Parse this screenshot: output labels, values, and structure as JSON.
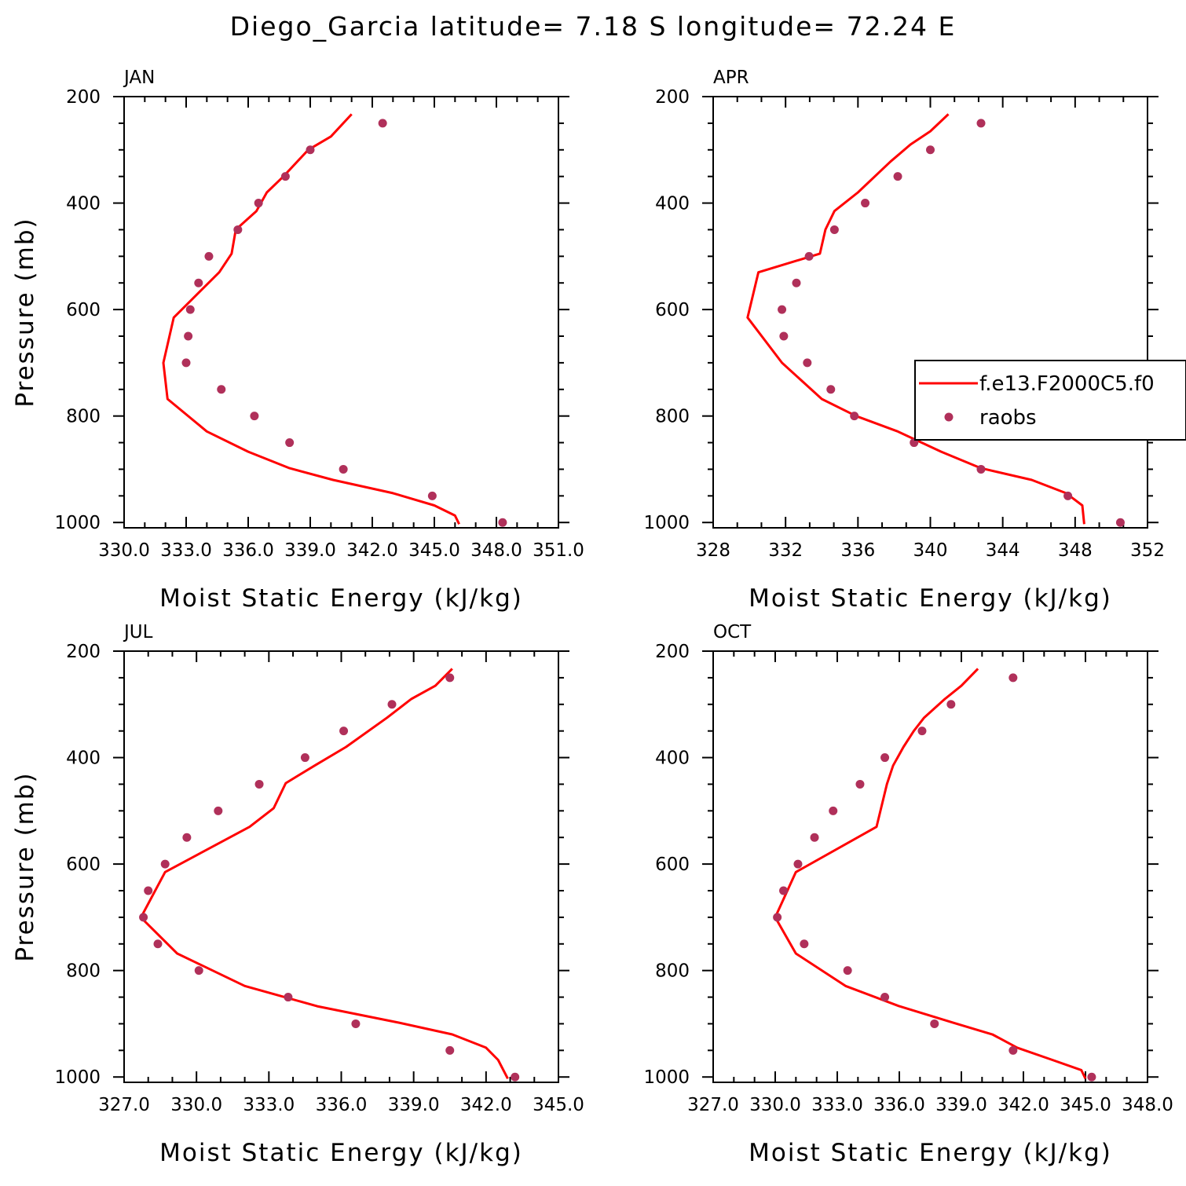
{
  "title": "Diego_Garcia  latitude= 7.18 S longitude= 72.24 E",
  "colors": {
    "model": "#ff0000",
    "obs": "#b0305a",
    "axis": "#000000"
  },
  "chart_data": [
    {
      "type": "line",
      "panel": "JAN",
      "xlabel": "Moist Static Energy (kJ/kg)",
      "ylabel": "Pressure (mb)",
      "xlim": [
        330.0,
        351.0
      ],
      "xticks": [
        330,
        333,
        336,
        339,
        342,
        345,
        348,
        351
      ],
      "xtick_labels": [
        "330.0",
        "333.0",
        "336.0",
        "339.0",
        "342.0",
        "345.0",
        "348.0",
        "351.0"
      ],
      "ylim": [
        1010,
        200
      ],
      "yticks": [
        200,
        400,
        600,
        800,
        1000
      ],
      "ytick_labels": [
        "200",
        "400",
        "600",
        "800",
        "1000"
      ],
      "series": [
        {
          "name": "f.e13.F2000C5.f0",
          "kind": "line",
          "x": [
            341.0,
            340.0,
            338.9,
            337.7,
            336.9,
            336.4,
            335.4,
            335.2,
            334.6,
            332.4,
            331.9,
            332.1,
            334.0,
            336.0,
            338.0,
            340.1,
            343.0,
            345.0,
            346.0,
            346.2
          ],
          "y": [
            233,
            275,
            300,
            350,
            380,
            415,
            450,
            495,
            530,
            615,
            700,
            768,
            829,
            867,
            898,
            920,
            945,
            968,
            987,
            1003
          ]
        },
        {
          "name": "raobs",
          "kind": "scatter",
          "x": [
            342.5,
            339.0,
            337.8,
            336.5,
            335.5,
            334.1,
            333.6,
            333.2,
            333.1,
            333.0,
            334.7,
            336.3,
            338.0,
            340.6,
            344.9,
            348.3
          ],
          "y": [
            250,
            300,
            350,
            400,
            450,
            500,
            550,
            600,
            650,
            700,
            750,
            800,
            850,
            900,
            950,
            1000
          ]
        }
      ]
    },
    {
      "type": "line",
      "panel": "APR",
      "xlabel": "Moist Static Energy (kJ/kg)",
      "ylabel": "",
      "xlim": [
        328,
        352
      ],
      "xticks": [
        328,
        332,
        336,
        340,
        344,
        348,
        352
      ],
      "xtick_labels": [
        "328",
        "332",
        "336",
        "340",
        "344",
        "348",
        "352"
      ],
      "ylim": [
        1010,
        200
      ],
      "yticks": [
        200,
        400,
        600,
        800,
        1000
      ],
      "ytick_labels": [
        "200",
        "400",
        "600",
        "800",
        "1000"
      ],
      "legend": {
        "placement": "right",
        "entries": [
          "f.e13.F2000C5.f0",
          "raobs"
        ]
      },
      "series": [
        {
          "name": "f.e13.F2000C5.f0",
          "kind": "line",
          "x": [
            341.0,
            340.0,
            338.9,
            337.8,
            336.0,
            334.7,
            334.2,
            333.9,
            330.5,
            329.9,
            331.8,
            334.0,
            335.9,
            338.2,
            340.6,
            342.8,
            345.6,
            347.5,
            348.4,
            348.5
          ],
          "y": [
            233,
            265,
            290,
            322,
            380,
            415,
            450,
            495,
            530,
            615,
            700,
            768,
            800,
            829,
            867,
            898,
            920,
            945,
            968,
            1003
          ]
        },
        {
          "name": "raobs",
          "kind": "scatter",
          "x": [
            342.8,
            340.0,
            338.2,
            336.4,
            334.7,
            333.3,
            332.6,
            331.8,
            331.9,
            333.2,
            334.5,
            335.8,
            339.1,
            342.8,
            347.6,
            350.5
          ],
          "y": [
            250,
            300,
            350,
            400,
            450,
            500,
            550,
            600,
            650,
            700,
            750,
            800,
            850,
            900,
            950,
            1000
          ]
        }
      ]
    },
    {
      "type": "line",
      "panel": "JUL",
      "xlabel": "Moist Static Energy (kJ/kg)",
      "ylabel": "Pressure (mb)",
      "xlim": [
        327.0,
        345.0
      ],
      "xticks": [
        327,
        330,
        333,
        336,
        339,
        342,
        345
      ],
      "xtick_labels": [
        "327.0",
        "330.0",
        "333.0",
        "336.0",
        "339.0",
        "342.0",
        "345.0"
      ],
      "ylim": [
        1010,
        200
      ],
      "yticks": [
        200,
        400,
        600,
        800,
        1000
      ],
      "ytick_labels": [
        "200",
        "400",
        "600",
        "800",
        "1000"
      ],
      "series": [
        {
          "name": "f.e13.F2000C5.f0",
          "kind": "line",
          "x": [
            340.6,
            339.9,
            338.9,
            337.9,
            336.2,
            334.9,
            333.7,
            333.2,
            332.2,
            328.7,
            327.7,
            327.8,
            329.2,
            332.0,
            335.0,
            338.4,
            340.6,
            342.0,
            342.5,
            342.9
          ],
          "y": [
            233,
            265,
            290,
            325,
            380,
            415,
            448,
            495,
            530,
            615,
            700,
            705,
            768,
            829,
            867,
            898,
            920,
            945,
            968,
            1003
          ]
        },
        {
          "name": "raobs",
          "kind": "scatter",
          "x": [
            340.5,
            338.1,
            336.1,
            334.5,
            332.6,
            330.9,
            329.6,
            328.7,
            328.0,
            327.8,
            328.4,
            330.1,
            333.8,
            336.6,
            340.5,
            343.2
          ],
          "y": [
            250,
            300,
            350,
            400,
            450,
            500,
            550,
            600,
            650,
            700,
            750,
            800,
            850,
            900,
            950,
            1000
          ]
        }
      ]
    },
    {
      "type": "line",
      "panel": "OCT",
      "xlabel": "Moist Static Energy (kJ/kg)",
      "ylabel": "",
      "xlim": [
        327.0,
        348.0
      ],
      "xticks": [
        327,
        330,
        333,
        336,
        339,
        342,
        345,
        348
      ],
      "xtick_labels": [
        "327.0",
        "330.0",
        "333.0",
        "336.0",
        "339.0",
        "342.0",
        "345.0",
        "348.0"
      ],
      "ylim": [
        1010,
        200
      ],
      "yticks": [
        200,
        400,
        600,
        800,
        1000
      ],
      "ytick_labels": [
        "200",
        "400",
        "600",
        "800",
        "1000"
      ],
      "series": [
        {
          "name": "f.e13.F2000C5.f0",
          "kind": "line",
          "x": [
            339.8,
            339.0,
            338.2,
            337.2,
            336.7,
            336.2,
            335.7,
            335.4,
            334.9,
            331.0,
            330.0,
            331.0,
            333.4,
            336.0,
            338.6,
            340.5,
            341.7,
            343.4,
            344.8,
            345.0
          ],
          "y": [
            233,
            265,
            290,
            325,
            350,
            380,
            415,
            450,
            530,
            615,
            700,
            768,
            829,
            867,
            898,
            920,
            945,
            968,
            987,
            1003
          ]
        },
        {
          "name": "raobs",
          "kind": "scatter",
          "x": [
            341.5,
            338.5,
            337.1,
            335.3,
            334.1,
            332.8,
            331.9,
            331.1,
            330.4,
            330.1,
            331.4,
            333.5,
            335.3,
            337.7,
            341.5,
            345.3
          ],
          "y": [
            250,
            300,
            350,
            400,
            450,
            500,
            550,
            600,
            650,
            700,
            750,
            800,
            850,
            900,
            950,
            1000
          ]
        }
      ]
    }
  ]
}
